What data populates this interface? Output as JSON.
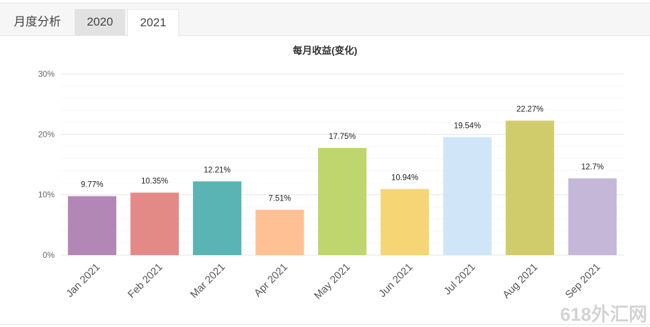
{
  "tabs": [
    {
      "label": "月度分析"
    },
    {
      "label": "2020"
    },
    {
      "label": "2021"
    }
  ],
  "watermark": "618外汇网",
  "chart_data": {
    "type": "bar",
    "title": "每月收益(变化)",
    "categories": [
      "Jan 2021",
      "Feb 2021",
      "Mar 2021",
      "Apr 2021",
      "May 2021",
      "Jun 2021",
      "Jul 2021",
      "Aug 2021",
      "Sep 2021"
    ],
    "values": [
      9.77,
      10.35,
      12.21,
      7.51,
      17.75,
      10.94,
      19.54,
      22.27,
      12.7
    ],
    "data_labels": [
      "9.77%",
      "10.35%",
      "12.21%",
      "7.51%",
      "17.75%",
      "10.94%",
      "19.54%",
      "22.27%",
      "12.7%"
    ],
    "colors": [
      "#b387b5",
      "#e38a87",
      "#5ab4b4",
      "#ffc094",
      "#bfd66f",
      "#f6d574",
      "#d0e6f8",
      "#d1cc6b",
      "#c5b7d8"
    ],
    "ylim": [
      0,
      30
    ],
    "yticks": [
      "0%",
      "10%",
      "20%",
      "30%"
    ],
    "grid": true,
    "xlabel": "",
    "ylabel": ""
  }
}
